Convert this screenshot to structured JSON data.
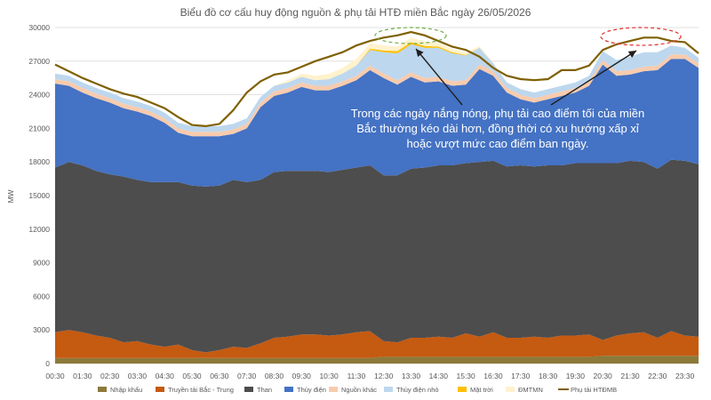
{
  "chart_data": {
    "type": "area",
    "title": "Biểu đồ cơ cấu huy động nguồn & phụ tải HTĐ miền Bắc ngày 26/05/2026",
    "ylabel": "MW",
    "xlabel": "",
    "ylim": [
      0,
      30000
    ],
    "yticks": [
      "0",
      "3000",
      "6000",
      "9000",
      "12000",
      "15000",
      "18000",
      "21000",
      "24000",
      "27000",
      "30000"
    ],
    "grid": true,
    "legend_position": "bottom",
    "x": [
      "00:30",
      "01:00",
      "01:30",
      "02:00",
      "02:30",
      "03:00",
      "03:30",
      "04:00",
      "04:30",
      "05:00",
      "05:30",
      "06:00",
      "06:30",
      "07:00",
      "07:30",
      "08:00",
      "08:30",
      "09:00",
      "09:30",
      "10:00",
      "10:30",
      "11:00",
      "11:30",
      "12:00",
      "12:30",
      "13:00",
      "13:30",
      "14:00",
      "14:30",
      "15:00",
      "15:30",
      "16:00",
      "16:30",
      "17:00",
      "17:30",
      "18:00",
      "18:30",
      "19:00",
      "19:30",
      "20:00",
      "20:30",
      "21:00",
      "21:30",
      "22:00",
      "22:30",
      "23:00",
      "23:30",
      "24:00"
    ],
    "xtick_labels": [
      "00:30",
      "01:30",
      "02:30",
      "03:30",
      "04:30",
      "05:30",
      "06:30",
      "07:30",
      "08:30",
      "09:30",
      "10:30",
      "11:30",
      "12:30",
      "13:30",
      "14:30",
      "15:30",
      "16:30",
      "17:30",
      "18:30",
      "19:30",
      "20:30",
      "21:30",
      "22:30",
      "23:30"
    ],
    "series": [
      {
        "name": "Nhập khẩu",
        "color": "#8c7a3a",
        "values": [
          500,
          500,
          500,
          500,
          500,
          500,
          500,
          500,
          500,
          500,
          500,
          500,
          500,
          500,
          500,
          500,
          500,
          500,
          500,
          500,
          500,
          500,
          500,
          500,
          600,
          600,
          600,
          600,
          600,
          600,
          600,
          600,
          600,
          600,
          600,
          600,
          600,
          600,
          600,
          600,
          700,
          700,
          700,
          700,
          700,
          700,
          700,
          700
        ]
      },
      {
        "name": "Truyền tải Bắc - Trung",
        "color": "#c55a11",
        "values": [
          2300,
          2500,
          2300,
          2000,
          1800,
          1400,
          1500,
          1200,
          1000,
          1200,
          700,
          500,
          700,
          1000,
          900,
          1300,
          1800,
          1900,
          2100,
          2100,
          2000,
          2100,
          2300,
          2400,
          1400,
          1300,
          1700,
          1700,
          1800,
          1700,
          2100,
          1800,
          2200,
          1700,
          1700,
          1800,
          1700,
          1900,
          1900,
          2000,
          1400,
          1800,
          2000,
          2100,
          1600,
          2200,
          1800,
          1700
        ]
      },
      {
        "name": "Than",
        "color": "#4d4d4d",
        "values": [
          14700,
          15000,
          14900,
          14700,
          14600,
          14800,
          14400,
          14500,
          14700,
          14500,
          14700,
          14800,
          14700,
          14900,
          14800,
          14600,
          14800,
          14800,
          14600,
          14600,
          14600,
          14700,
          14700,
          14800,
          14800,
          14900,
          15100,
          15200,
          15300,
          15400,
          15200,
          15600,
          15300,
          15300,
          15400,
          15200,
          15400,
          15200,
          15400,
          15300,
          15800,
          15400,
          15400,
          15200,
          15100,
          15300,
          15600,
          15400
        ]
      },
      {
        "name": "Thủy điện",
        "color": "#4472c4",
        "values": [
          7500,
          6800,
          6500,
          6500,
          6400,
          6100,
          6100,
          5900,
          5300,
          4400,
          4400,
          4500,
          4400,
          4100,
          4800,
          6500,
          6800,
          7000,
          7500,
          7200,
          7300,
          7500,
          7800,
          8500,
          8700,
          8100,
          8200,
          7600,
          7500,
          7100,
          7000,
          8300,
          7600,
          6600,
          5900,
          5700,
          5900,
          6200,
          6300,
          6900,
          8800,
          7800,
          7700,
          8100,
          8800,
          9000,
          9100,
          8600
        ]
      },
      {
        "name": "Nguồn khác",
        "color": "#f8cbad",
        "values": [
          400,
          400,
          400,
          400,
          400,
          400,
          400,
          400,
          400,
          400,
          400,
          400,
          400,
          400,
          400,
          400,
          400,
          400,
          400,
          400,
          400,
          400,
          400,
          400,
          400,
          400,
          400,
          400,
          400,
          400,
          400,
          400,
          400,
          400,
          400,
          400,
          400,
          400,
          400,
          400,
          400,
          400,
          400,
          400,
          400,
          400,
          400,
          400
        ]
      },
      {
        "name": "Thủy điện nhỏ",
        "color": "#bdd7ee",
        "values": [
          500,
          500,
          500,
          500,
          500,
          500,
          500,
          500,
          500,
          500,
          500,
          500,
          500,
          500,
          500,
          500,
          500,
          500,
          500,
          500,
          600,
          700,
          900,
          1400,
          1900,
          2400,
          2500,
          2700,
          2600,
          2500,
          2200,
          1500,
          700,
          500,
          500,
          500,
          500,
          500,
          500,
          500,
          800,
          1000,
          1200,
          1300,
          1200,
          800,
          600,
          500
        ]
      },
      {
        "name": "Mặt trời",
        "color": "#ffc000",
        "values": [
          0,
          0,
          0,
          0,
          0,
          0,
          0,
          0,
          0,
          0,
          0,
          0,
          0,
          0,
          0,
          0,
          0,
          0,
          0,
          0,
          0,
          0,
          0,
          100,
          150,
          200,
          200,
          150,
          100,
          100,
          50,
          0,
          0,
          0,
          0,
          0,
          0,
          0,
          0,
          0,
          0,
          0,
          0,
          0,
          0,
          0,
          0,
          0
        ]
      },
      {
        "name": "ĐMTMN",
        "color": "#fff2cc",
        "values": [
          0,
          0,
          0,
          0,
          0,
          0,
          0,
          0,
          0,
          0,
          0,
          0,
          0,
          0,
          0,
          0,
          0,
          200,
          300,
          400,
          450,
          500,
          600,
          500,
          450,
          400,
          400,
          400,
          350,
          300,
          200,
          150,
          100,
          0,
          0,
          0,
          0,
          0,
          0,
          0,
          0,
          0,
          0,
          0,
          0,
          0,
          0,
          0
        ]
      }
    ],
    "load_series": {
      "name": "Phụ tải HTĐMB",
      "color": "#7f6000",
      "values": [
        26700,
        26100,
        25500,
        25000,
        24500,
        24100,
        23800,
        23300,
        22800,
        22000,
        21300,
        21200,
        21400,
        22600,
        24200,
        25200,
        25800,
        26000,
        26500,
        27000,
        27400,
        27800,
        28400,
        28800,
        29100,
        29300,
        29600,
        29300,
        28800,
        28300,
        28000,
        27400,
        26400,
        25700,
        25400,
        25300,
        25400,
        26200,
        26200,
        26600,
        28000,
        28500,
        28800,
        29100,
        29100,
        28800,
        28700,
        27700
      ]
    },
    "annotation": "Trong các ngày nắng nóng, phụ tải cao điểm tối của miền Bắc thường kéo dài hơn, đồng thời có xu hướng xấp xỉ hoặc vượt mức cao điểm ban ngày."
  }
}
